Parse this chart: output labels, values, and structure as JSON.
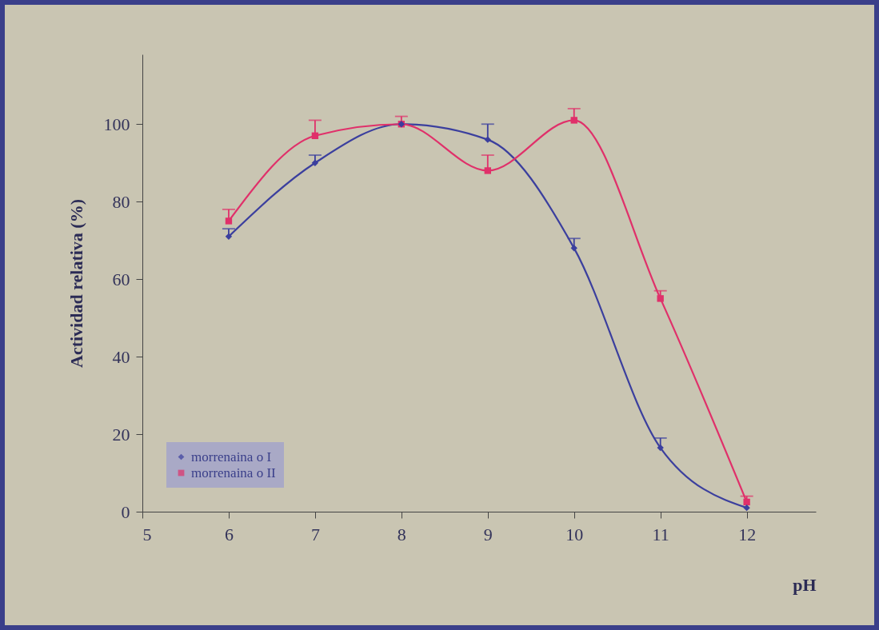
{
  "chart_data": {
    "type": "line",
    "xlabel": "pH",
    "ylabel": "Actividad relativa (%)",
    "x": [
      6,
      7,
      8,
      9,
      10,
      11,
      12
    ],
    "series": [
      {
        "name": "morrenaina o I",
        "color": "#3b3f9e",
        "marker": "diamond",
        "values": [
          71,
          90,
          100,
          96,
          68,
          16.5,
          1
        ],
        "errors": [
          [
            71,
            73
          ],
          [
            90,
            92
          ],
          null,
          [
            96,
            100
          ],
          [
            68,
            70.5
          ],
          [
            16.5,
            19
          ],
          null
        ]
      },
      {
        "name": "morrenaina o II",
        "color": "#e0306a",
        "marker": "square",
        "values": [
          75,
          97,
          100,
          88,
          101,
          55,
          2.5
        ],
        "errors": [
          [
            75,
            78
          ],
          [
            97,
            101
          ],
          [
            100,
            102
          ],
          [
            88,
            92
          ],
          [
            101,
            104
          ],
          [
            55,
            57
          ],
          [
            2.5,
            4
          ]
        ]
      }
    ],
    "xlim": [
      5,
      12.8
    ],
    "xticks": [
      5,
      6,
      7,
      8,
      9,
      10,
      11,
      12
    ],
    "ylim": [
      0,
      118
    ],
    "yticks": [
      0,
      20,
      40,
      60,
      80,
      100
    ],
    "grid": false,
    "legend": "bottom left",
    "line_style": "solid"
  }
}
